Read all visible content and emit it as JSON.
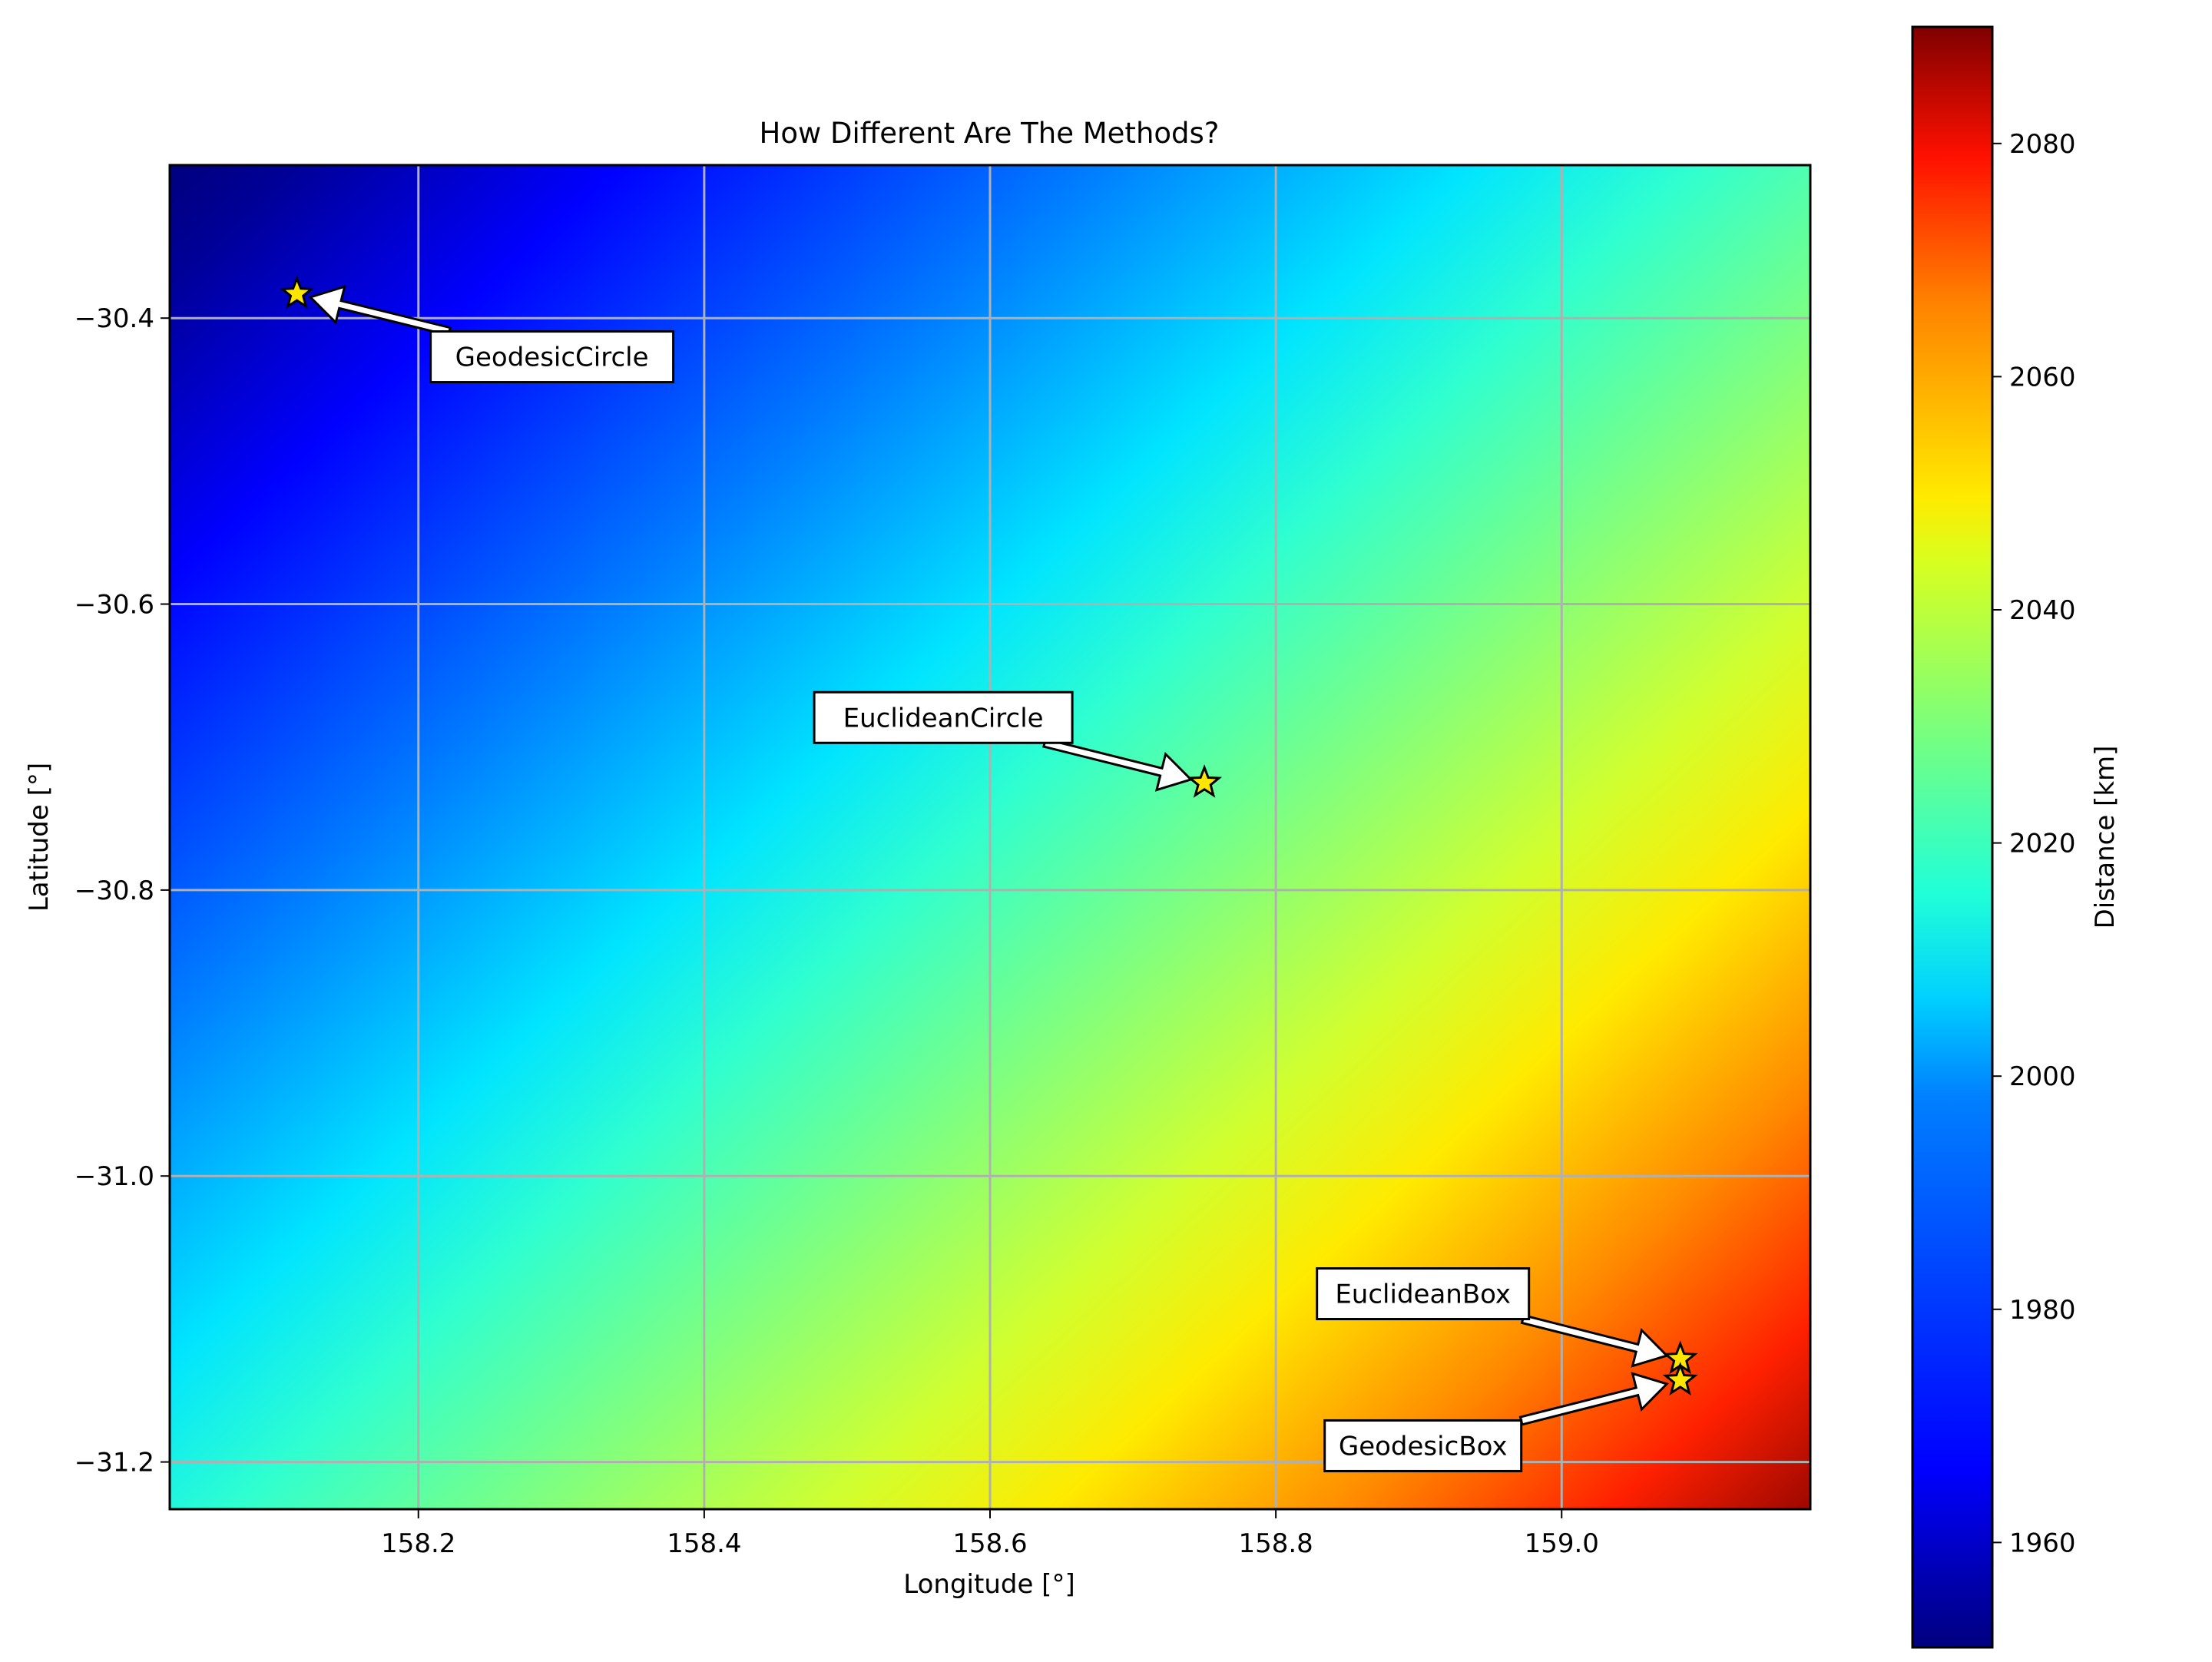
{
  "chart_data": {
    "type": "heatmap",
    "title": "How Different Are The Methods?",
    "xlabel": "Longitude [°]",
    "ylabel": "Latitude [°]",
    "xlim": [
      158.026,
      159.174
    ],
    "ylim": [
      -31.233,
      -30.293
    ],
    "x_ticks": [
      {
        "value": 158.2,
        "label": "158.2"
      },
      {
        "value": 158.4,
        "label": "158.4"
      },
      {
        "value": 158.6,
        "label": "158.6"
      },
      {
        "value": 158.8,
        "label": "158.8"
      },
      {
        "value": 159.0,
        "label": "159.0"
      }
    ],
    "y_ticks": [
      {
        "value": -30.4,
        "label": "−30.4"
      },
      {
        "value": -30.6,
        "label": "−30.6"
      },
      {
        "value": -30.8,
        "label": "−30.8"
      },
      {
        "value": -31.0,
        "label": "−31.0"
      },
      {
        "value": -31.2,
        "label": "−31.2"
      }
    ],
    "grid": true,
    "colormap": "jet",
    "colorbar": {
      "label": "Distance [km]",
      "range": [
        1951,
        2090
      ],
      "ticks": [
        {
          "value": 1960,
          "label": "1960"
        },
        {
          "value": 1980,
          "label": "1980"
        },
        {
          "value": 2000,
          "label": "2000"
        },
        {
          "value": 2020,
          "label": "2020"
        },
        {
          "value": 2040,
          "label": "2040"
        },
        {
          "value": 2060,
          "label": "2060"
        },
        {
          "value": 2080,
          "label": "2080"
        }
      ]
    },
    "field_samples": [
      {
        "lon": 158.05,
        "lat": -30.45,
        "value": 1952
      },
      {
        "lon": 158.3,
        "lat": -30.32,
        "value": 1955
      },
      {
        "lon": 158.75,
        "lat": -30.73,
        "value": 2022
      },
      {
        "lon": 158.6,
        "lat": -31.0,
        "value": 2030
      },
      {
        "lon": 159.15,
        "lat": -31.22,
        "value": 2088
      }
    ],
    "annotations": [
      {
        "label": "GeodesicCircle",
        "lon": 158.115,
        "lat": -30.383
      },
      {
        "label": "EuclideanCircle",
        "lon": 158.75,
        "lat": -30.725
      },
      {
        "label": "EuclideanBox",
        "lon": 159.083,
        "lat": -31.128
      },
      {
        "label": "GeodesicBox",
        "lon": 159.083,
        "lat": -31.143
      }
    ],
    "marker_color": "#ffe600"
  }
}
